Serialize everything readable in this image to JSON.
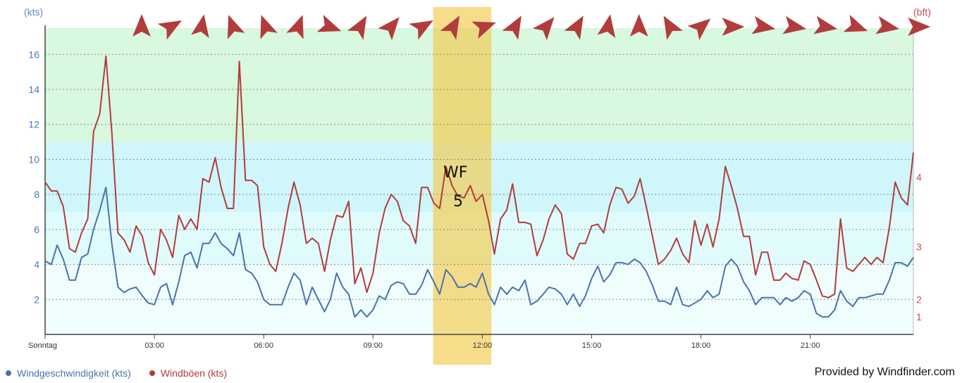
{
  "colors": {
    "speed": "#4a73ab",
    "gust": "#b23c3c",
    "arrow": "#b23c3c",
    "highlight": "#f2c94c"
  },
  "axes": {
    "left_unit": "(kts)",
    "right_unit": "(bft)"
  },
  "annotation": {
    "line1": "WF",
    "line2": "5",
    "highlight_start_hours": 10.65,
    "highlight_end_hours": 12.25
  },
  "legend": {
    "speed_label": "Windgeschwindigkeit (kts)",
    "gust_label": "Windböen (kts)"
  },
  "credit": "Provided by Windfinder.com",
  "chart_data": {
    "type": "line",
    "x_unit": "hours since Sonntag 00:00",
    "xlim": [
      0,
      23.83
    ],
    "ylim": [
      0,
      17.5
    ],
    "y_ticks": [
      2,
      4,
      6,
      8,
      10,
      12,
      14,
      16
    ],
    "x_ticks": [
      {
        "h": 0,
        "label": "Sonntag"
      },
      {
        "h": 3,
        "label": "03:00"
      },
      {
        "h": 6,
        "label": "06:00"
      },
      {
        "h": 9,
        "label": "09:00"
      },
      {
        "h": 12,
        "label": "12:00"
      },
      {
        "h": 15,
        "label": "15:00"
      },
      {
        "h": 18,
        "label": "18:00"
      },
      {
        "h": 21,
        "label": "21:00"
      }
    ],
    "bft_ticks": [
      {
        "kts": 1.0,
        "label": "1"
      },
      {
        "kts": 2.0,
        "label": "2"
      },
      {
        "kts": 5.0,
        "label": "3"
      },
      {
        "kts": 9.0,
        "label": "4"
      }
    ],
    "bands": [
      {
        "from": 0,
        "to": 4,
        "color": "#f0fdfd"
      },
      {
        "from": 4,
        "to": 7,
        "color": "#e0fbfb"
      },
      {
        "from": 7,
        "to": 11,
        "color": "#cff6fa"
      },
      {
        "from": 11,
        "to": 17.5,
        "color": "#d8f8df"
      }
    ],
    "x": [
      0,
      0.17,
      0.33,
      0.5,
      0.67,
      0.83,
      1,
      1.17,
      1.33,
      1.5,
      1.67,
      1.83,
      2,
      2.17,
      2.33,
      2.5,
      2.67,
      2.83,
      3,
      3.17,
      3.33,
      3.5,
      3.67,
      3.83,
      4,
      4.17,
      4.33,
      4.5,
      4.67,
      4.83,
      5,
      5.17,
      5.33,
      5.5,
      5.67,
      5.83,
      6,
      6.17,
      6.33,
      6.5,
      6.67,
      6.83,
      7,
      7.17,
      7.33,
      7.5,
      7.67,
      7.83,
      8,
      8.17,
      8.33,
      8.5,
      8.67,
      8.83,
      9,
      9.17,
      9.33,
      9.5,
      9.67,
      9.83,
      10,
      10.17,
      10.33,
      10.5,
      10.67,
      10.83,
      11,
      11.17,
      11.33,
      11.5,
      11.67,
      11.83,
      12,
      12.17,
      12.33,
      12.5,
      12.67,
      12.83,
      13,
      13.17,
      13.33,
      13.5,
      13.67,
      13.83,
      14,
      14.17,
      14.33,
      14.5,
      14.67,
      14.83,
      15,
      15.17,
      15.33,
      15.5,
      15.67,
      15.83,
      16,
      16.17,
      16.33,
      16.5,
      16.67,
      16.83,
      17,
      17.17,
      17.33,
      17.5,
      17.67,
      17.83,
      18,
      18.17,
      18.33,
      18.5,
      18.67,
      18.83,
      19,
      19.17,
      19.33,
      19.5,
      19.67,
      19.83,
      20,
      20.17,
      20.33,
      20.5,
      20.67,
      20.83,
      21,
      21.17,
      21.33,
      21.5,
      21.67,
      21.83,
      22,
      22.17,
      22.33,
      22.5,
      22.67,
      22.83,
      23,
      23.17,
      23.33,
      23.5,
      23.67,
      23.83
    ],
    "series": [
      {
        "name": "Windgeschwindigkeit (kts)",
        "values": [
          4.2,
          4.0,
          5.1,
          4.3,
          3.1,
          3.1,
          4.4,
          4.6,
          6.0,
          7.1,
          8.4,
          5.2,
          2.7,
          2.4,
          2.6,
          2.7,
          2.2,
          1.8,
          1.7,
          2.7,
          2.9,
          1.7,
          3.0,
          4.5,
          4.7,
          3.8,
          5.2,
          5.2,
          5.8,
          5.2,
          4.9,
          4.5,
          5.8,
          3.7,
          3.5,
          3.0,
          2.0,
          1.7,
          1.7,
          1.7,
          2.7,
          3.5,
          3.1,
          1.7,
          2.7,
          2.0,
          1.3,
          2.0,
          3.5,
          2.7,
          2.3,
          1.0,
          1.4,
          1.0,
          1.4,
          2.2,
          2.0,
          2.8,
          3.0,
          2.9,
          2.3,
          2.3,
          2.8,
          3.7,
          3.0,
          2.3,
          3.7,
          3.3,
          2.7,
          2.7,
          2.9,
          2.7,
          3.5,
          2.3,
          1.7,
          2.7,
          2.3,
          2.7,
          2.5,
          3.1,
          1.7,
          1.9,
          2.3,
          2.7,
          2.6,
          2.3,
          1.7,
          2.3,
          1.6,
          2.2,
          3.2,
          3.9,
          3.0,
          3.4,
          4.1,
          4.1,
          4.0,
          4.3,
          4.1,
          3.6,
          2.8,
          1.9,
          1.9,
          1.7,
          2.7,
          1.7,
          1.6,
          1.8,
          2.0,
          2.5,
          2.1,
          2.3,
          3.9,
          4.3,
          3.9,
          3.0,
          2.5,
          1.7,
          2.1,
          2.1,
          2.1,
          1.7,
          2.1,
          1.9,
          2.1,
          2.5,
          2.3,
          1.2,
          1.0,
          1.0,
          1.4,
          2.5,
          1.9,
          1.6,
          2.1,
          2.1,
          2.2,
          2.3,
          2.3,
          3.1,
          4.1,
          4.1,
          3.9,
          4.4
        ]
      },
      {
        "name": "Windböen (kts)",
        "values": [
          8.7,
          8.2,
          8.2,
          7.3,
          4.9,
          4.7,
          5.8,
          6.6,
          11.6,
          12.6,
          15.9,
          11.6,
          5.8,
          5.4,
          4.7,
          6.2,
          5.6,
          4.1,
          3.4,
          6.0,
          5.4,
          4.4,
          6.8,
          6.0,
          6.6,
          6.0,
          8.9,
          8.7,
          10.1,
          8.4,
          7.2,
          7.2,
          15.6,
          8.8,
          8.8,
          8.5,
          5.0,
          4.0,
          3.6,
          5.2,
          7.2,
          8.7,
          7.4,
          5.2,
          5.5,
          5.2,
          3.6,
          5.4,
          6.8,
          6.7,
          7.6,
          2.9,
          3.8,
          2.4,
          3.5,
          5.8,
          7.2,
          8.0,
          7.6,
          6.5,
          6.2,
          5.2,
          8.4,
          8.4,
          7.5,
          7.2,
          9.6,
          8.5,
          7.9,
          7.8,
          8.5,
          7.6,
          8.0,
          6.5,
          4.6,
          6.6,
          7.1,
          8.6,
          6.4,
          6.4,
          6.3,
          4.5,
          5.4,
          6.6,
          7.4,
          6.9,
          4.6,
          4.3,
          5.2,
          5.2,
          6.2,
          6.3,
          5.8,
          7.4,
          8.4,
          8.3,
          7.5,
          7.9,
          8.9,
          7.3,
          5.6,
          4.0,
          4.3,
          4.8,
          5.5,
          4.6,
          4.1,
          6.5,
          5.1,
          6.3,
          5.0,
          6.6,
          9.6,
          8.5,
          7.2,
          5.6,
          5.6,
          3.4,
          4.7,
          4.7,
          3.1,
          3.1,
          3.5,
          3.2,
          3.1,
          4.2,
          4.0,
          3.1,
          2.2,
          2.1,
          2.3,
          6.6,
          3.8,
          3.6,
          4.0,
          4.4,
          4.0,
          4.4,
          4.1,
          6.1,
          8.7,
          7.8,
          7.4,
          10.4
        ]
      }
    ],
    "wind_directions": {
      "x": [
        2.65,
        3.45,
        4.3,
        5.15,
        6.05,
        6.95,
        7.8,
        8.65,
        9.5,
        10.35,
        11.2,
        12.05,
        12.9,
        13.75,
        14.6,
        15.45,
        16.3,
        17.15,
        18.0,
        18.85,
        19.7,
        20.55,
        21.4,
        22.25,
        23.1,
        23.95
      ],
      "deg": [
        270,
        330,
        280,
        250,
        250,
        290,
        20,
        300,
        310,
        330,
        300,
        340,
        300,
        310,
        300,
        280,
        270,
        240,
        320,
        0,
        10,
        10,
        10,
        20,
        10,
        0
      ]
    }
  }
}
